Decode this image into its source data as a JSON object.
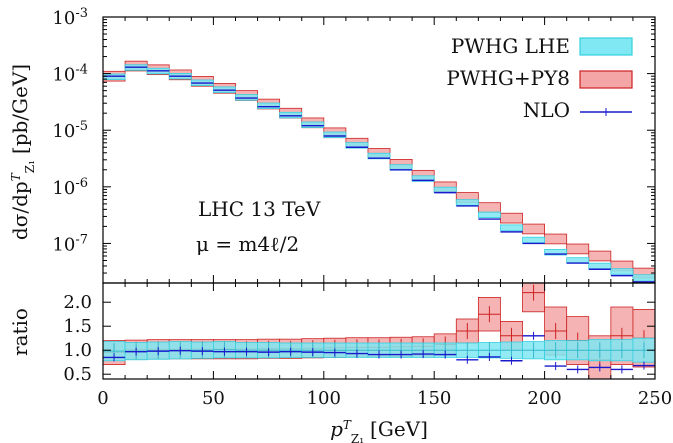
{
  "chart_data": [
    {
      "type": "line",
      "panel": "main",
      "ylabel": "dσ/dp",
      "ylabel_sup": "T",
      "ylabel_sub": "Z₁",
      "ylabel_unit": "[pb/GeV]",
      "yscale": "log",
      "ylim": [
        2e-08,
        0.001
      ],
      "xlim": [
        0,
        250
      ],
      "x_bin_edges": [
        0,
        10,
        20,
        30,
        40,
        50,
        60,
        70,
        80,
        90,
        100,
        110,
        120,
        130,
        140,
        150,
        160,
        170,
        180,
        190,
        200,
        210,
        220,
        230,
        240,
        250
      ],
      "yticks": [
        "10^-3",
        "10^-4",
        "10^-5",
        "10^-6",
        "10^-7"
      ],
      "annotations": [
        "LHC 13 TeV",
        "μ = m4ℓ/2"
      ],
      "legend_position": "top-right",
      "series": [
        {
          "name": "PWHG LHE",
          "style": "band",
          "color": "#7fe8f2",
          "values": [
            8.8e-05,
            0.000128,
            0.000111,
            9e-05,
            6.9e-05,
            5.2e-05,
            3.8e-05,
            2.7e-05,
            1.85e-05,
            1.25e-05,
            8.3e-06,
            5.4e-06,
            3.5e-06,
            2.2e-06,
            1.4e-06,
            8.8e-07,
            5.3e-07,
            3.2e-07,
            1.9e-07,
            1.15e-07,
            7e-08,
            5e-08,
            4e-08,
            3.2e-08,
            2.5e-08
          ]
        },
        {
          "name": "PWHG+PY8",
          "style": "band",
          "color": "#f4a6a6",
          "values": [
            9e-05,
            0.000136,
            0.000117,
            9.5e-05,
            7.3e-05,
            5.5e-05,
            4.1e-05,
            2.9e-05,
            2e-05,
            1.35e-05,
            9e-06,
            5.9e-06,
            3.9e-06,
            2.5e-06,
            1.6e-06,
            1e-06,
            6.5e-07,
            4.3e-07,
            2.8e-07,
            1.8e-07,
            1.2e-07,
            8e-08,
            6e-08,
            4e-08,
            3e-08
          ]
        },
        {
          "name": "NLO",
          "style": "steps",
          "color": "#1a1acc",
          "values": [
            9e-05,
            0.00013,
            0.000112,
            9e-05,
            6.8e-05,
            5.1e-05,
            3.7e-05,
            2.6e-05,
            1.8e-05,
            1.2e-05,
            7.9e-06,
            5e-06,
            3.2e-06,
            2e-06,
            1.3e-06,
            7.9e-07,
            4.6e-07,
            2.7e-07,
            1.6e-07,
            1e-07,
            6.5e-08,
            4.5e-08,
            3.5e-08,
            2.7e-08,
            2.1e-08
          ]
        }
      ]
    },
    {
      "type": "line",
      "panel": "ratio",
      "ylabel": "ratio",
      "xlabel": "p",
      "xlabel_sup": "T",
      "xlabel_sub": "Z₁",
      "xlabel_unit": "[GeV]",
      "xlim": [
        0,
        250
      ],
      "ylim": [
        0.4,
        2.4
      ],
      "xticks": [
        0,
        50,
        100,
        150,
        200,
        250
      ],
      "yticks": [
        0.5,
        1.0,
        1.5,
        2.0
      ],
      "ytick_labels": [
        "0.5",
        "1.0",
        "1.5",
        "2.0"
      ],
      "x_bin_edges": [
        0,
        10,
        20,
        30,
        40,
        50,
        60,
        70,
        80,
        90,
        100,
        110,
        120,
        130,
        140,
        150,
        160,
        170,
        180,
        190,
        200,
        210,
        220,
        230,
        240,
        250
      ],
      "series": [
        {
          "name": "PWHG LHE",
          "style": "band",
          "color": "#7fe8f2",
          "values": [
            0.98,
            0.98,
            0.99,
            1.0,
            1.0,
            1.01,
            1.0,
            1.0,
            1.0,
            1.0,
            1.0,
            1.0,
            1.0,
            1.0,
            1.0,
            1.0,
            1.0,
            1.0,
            1.0,
            1.0,
            1.0,
            1.0,
            1.0,
            1.0,
            1.0
          ],
          "half_width": [
            0.2,
            0.18,
            0.18,
            0.18,
            0.17,
            0.17,
            0.16,
            0.16,
            0.15,
            0.15,
            0.15,
            0.15,
            0.15,
            0.15,
            0.15,
            0.15,
            0.15,
            0.16,
            0.17,
            0.18,
            0.2,
            0.2,
            0.22,
            0.22,
            0.25
          ]
        },
        {
          "name": "PWHG+PY8",
          "style": "band",
          "color": "#f4a6a6",
          "values": [
            0.95,
            1.01,
            1.02,
            1.02,
            1.02,
            1.02,
            1.02,
            1.03,
            1.03,
            1.04,
            1.05,
            1.06,
            1.06,
            1.07,
            1.08,
            1.12,
            1.4,
            1.75,
            1.3,
            2.2,
            1.4,
            1.2,
            0.8,
            1.3,
            1.25
          ],
          "half_width": [
            0.25,
            0.2,
            0.2,
            0.2,
            0.2,
            0.2,
            0.2,
            0.2,
            0.2,
            0.2,
            0.2,
            0.2,
            0.2,
            0.2,
            0.2,
            0.22,
            0.25,
            0.35,
            0.3,
            0.4,
            0.5,
            0.5,
            0.5,
            0.6,
            0.6
          ]
        },
        {
          "name": "NLO",
          "style": "steps",
          "color": "#1a1acc",
          "values": [
            0.85,
            0.97,
            0.98,
            0.99,
            0.98,
            0.97,
            0.97,
            0.96,
            0.97,
            0.96,
            0.95,
            0.93,
            0.91,
            0.91,
            0.92,
            0.91,
            0.8,
            0.86,
            0.78,
            1.3,
            0.67,
            0.6,
            0.64,
            0.6,
            0.68
          ]
        }
      ]
    }
  ]
}
